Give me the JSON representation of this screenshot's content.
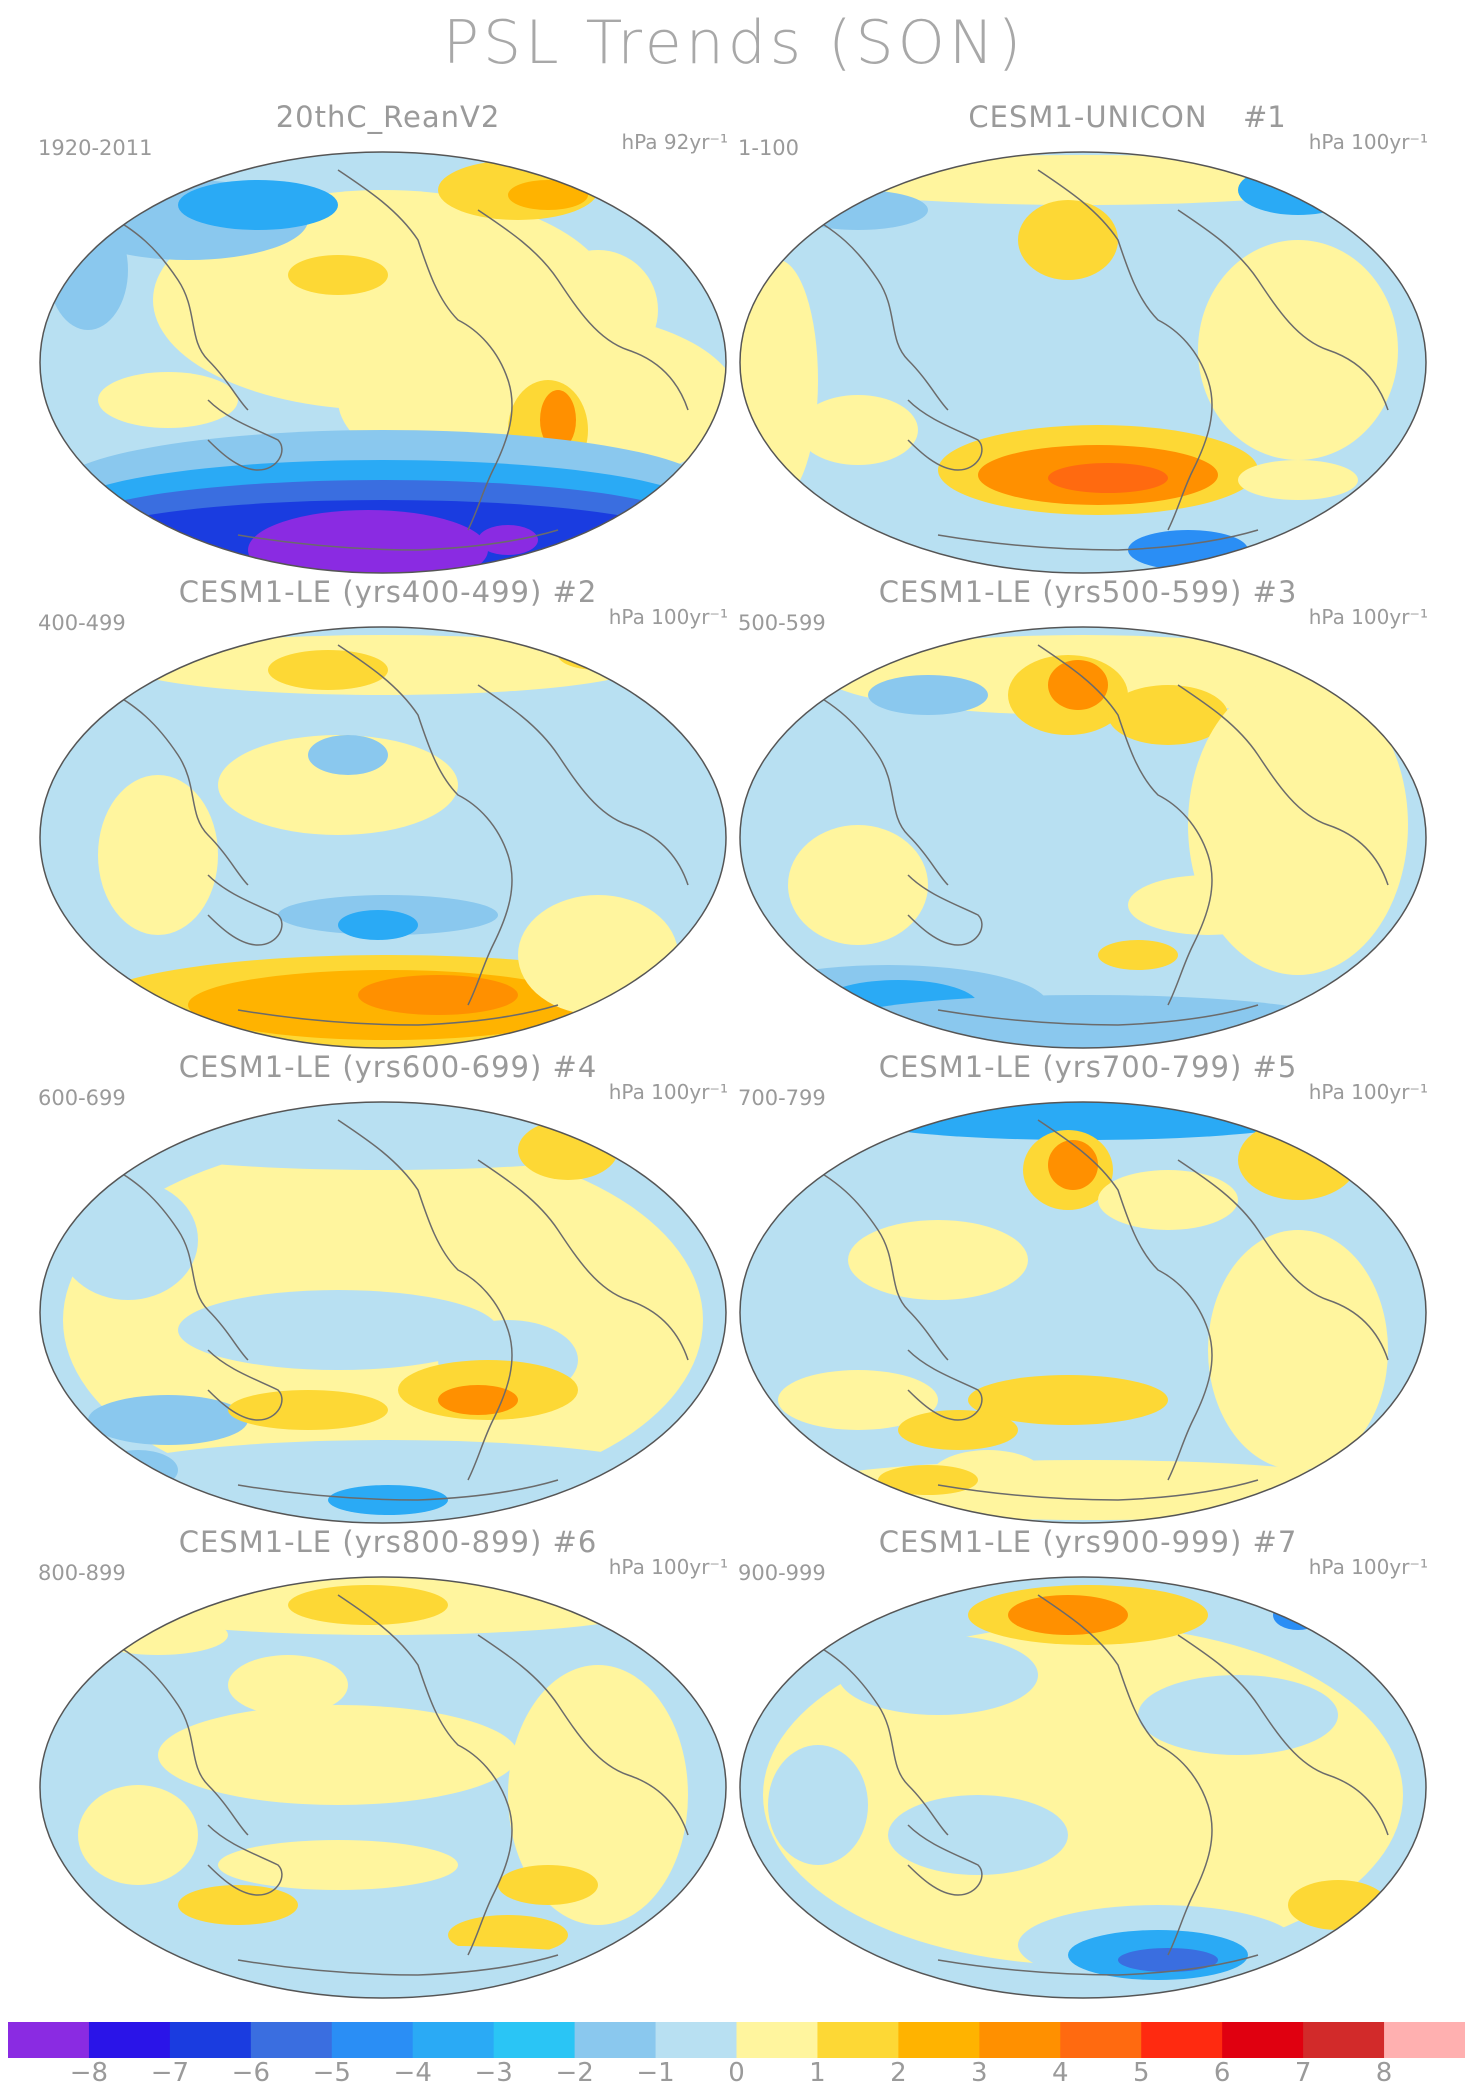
{
  "figure_title": "PSL Trends (SON)",
  "panels": [
    {
      "title": "20thC_ReanV2",
      "number": "",
      "range": "1920-2011",
      "units": "hPa 92yr⁻¹",
      "style": "rean"
    },
    {
      "title": "CESM1-UNICON",
      "number": "#1",
      "range": "1-100",
      "units": "hPa 100yr⁻¹",
      "style": "p1"
    },
    {
      "title": "CESM1-LE (yrs400-499) #2",
      "number": "",
      "range": "400-499",
      "units": "hPa 100yr⁻¹",
      "style": "p2"
    },
    {
      "title": "CESM1-LE (yrs500-599) #3",
      "number": "",
      "range": "500-599",
      "units": "hPa 100yr⁻¹",
      "style": "p3"
    },
    {
      "title": "CESM1-LE (yrs600-699) #4",
      "number": "",
      "range": "600-699",
      "units": "hPa 100yr⁻¹",
      "style": "p4"
    },
    {
      "title": "CESM1-LE (yrs700-799) #5",
      "number": "",
      "range": "700-799",
      "units": "hPa 100yr⁻¹",
      "style": "p5"
    },
    {
      "title": "CESM1-LE (yrs800-899) #6",
      "number": "",
      "range": "800-899",
      "units": "hPa 100yr⁻¹",
      "style": "p6"
    },
    {
      "title": "CESM1-LE (yrs900-999) #7",
      "number": "",
      "range": "900-999",
      "units": "hPa 100yr⁻¹",
      "style": "p7"
    }
  ],
  "colorbar": {
    "colors": [
      "#8a2be2",
      "#2a14e8",
      "#1a3ce0",
      "#3a6ee0",
      "#2a8ef5",
      "#2aaaf5",
      "#2ac5f5",
      "#8ac8ee",
      "#b8e0f2",
      "#fff59e",
      "#fdd835",
      "#ffb300",
      "#ff9000",
      "#ff6a10",
      "#ff2a10",
      "#e00010",
      "#d22a2a",
      "#ffb0b0"
    ],
    "labels": [
      "−8",
      "−7",
      "−6",
      "−5",
      "−4",
      "−3",
      "−2",
      "−1",
      "0",
      "1",
      "2",
      "3",
      "4",
      "5",
      "6",
      "7",
      "8"
    ]
  }
}
